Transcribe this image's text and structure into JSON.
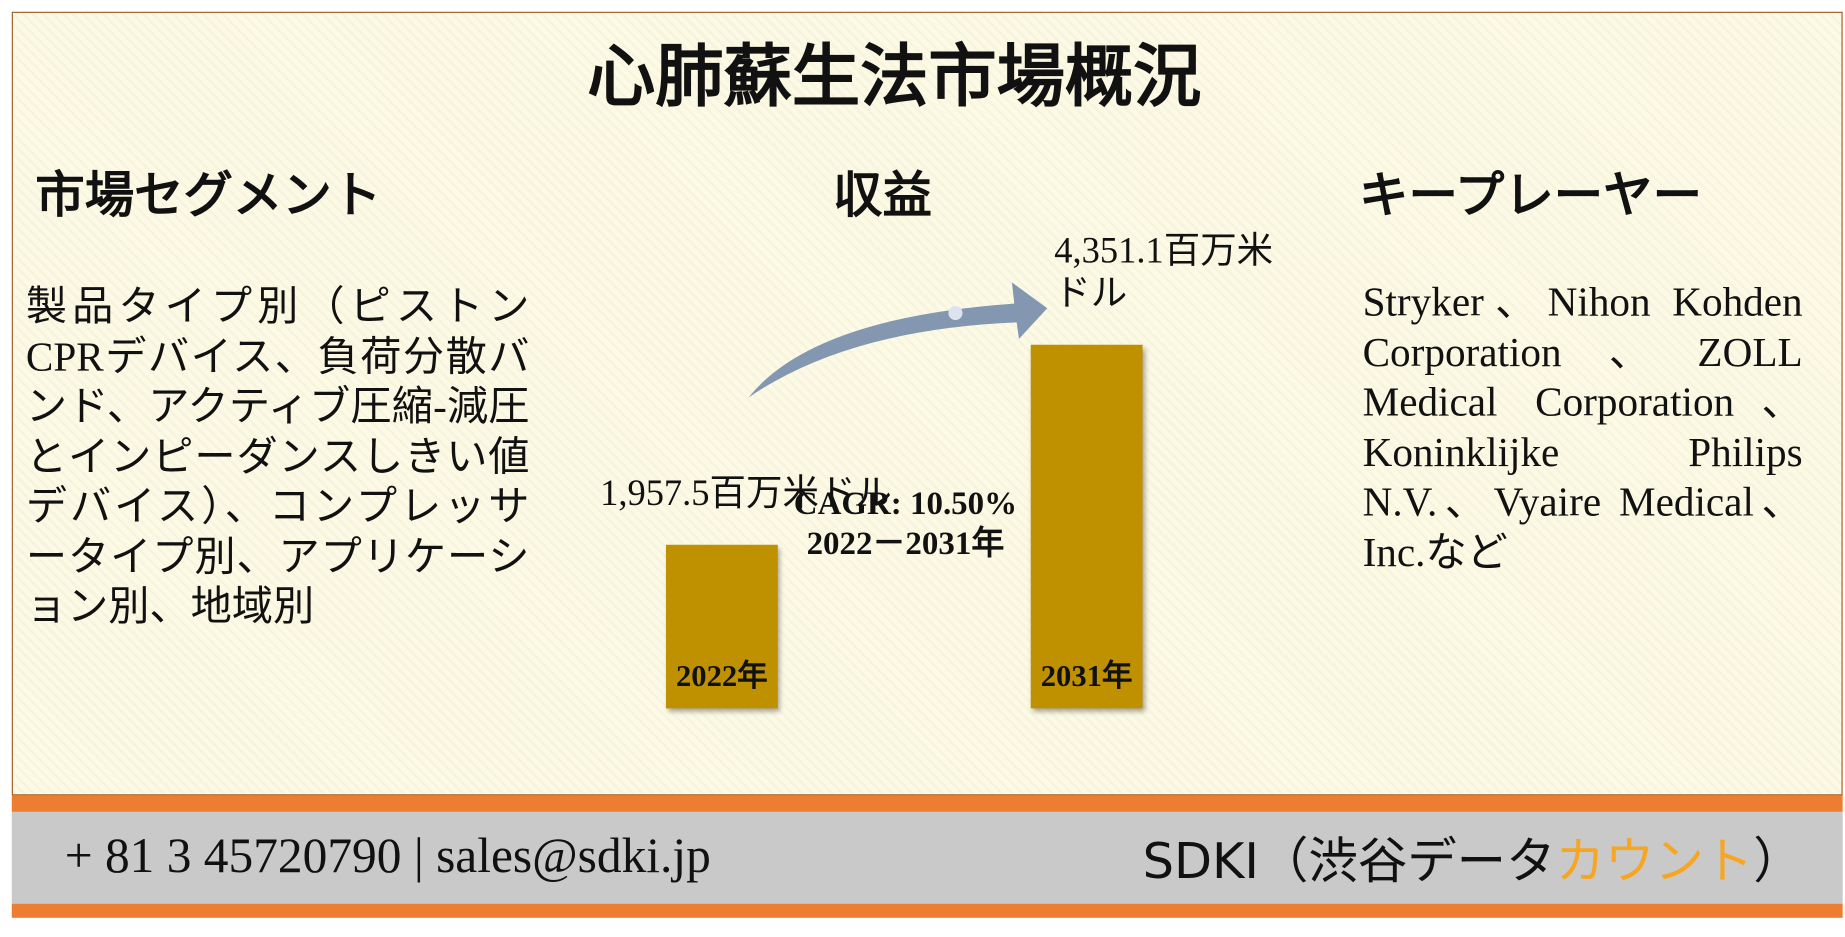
{
  "title": "心肺蘇生法市場概況",
  "segment": {
    "heading": "市場セグメント",
    "text": "製品タイプ別（ピストンCPRデバイス、負荷分散バンド、アクティブ圧縮-減圧とインピーダンスしきい値デバイス）、コンプレッサータイプ別、アプリケーション別、地域別"
  },
  "revenue": {
    "heading": "収益",
    "bars": [
      {
        "label": "2022年",
        "value": 1957.5,
        "value_label": "1,957.5百万米ドル"
      },
      {
        "label": "2031年",
        "value": 4351.1,
        "value_label": "4,351.1百万米ドル"
      }
    ],
    "cagr": "CAGR: 10.50%",
    "period": "2022－2031年"
  },
  "players": {
    "heading": "キープレーヤー",
    "text": "Stryker、Nihon Kohden Corporation、ZOLL Medical Corporation、Koninklijke Philips N.V.、Vyaire Medical、Inc.など"
  },
  "footer": {
    "contact": "+ 81 3 45720790 | sales@sdki.jp",
    "brand": [
      "SDKI（渋谷データ",
      "カウント",
      "）"
    ]
  }
}
